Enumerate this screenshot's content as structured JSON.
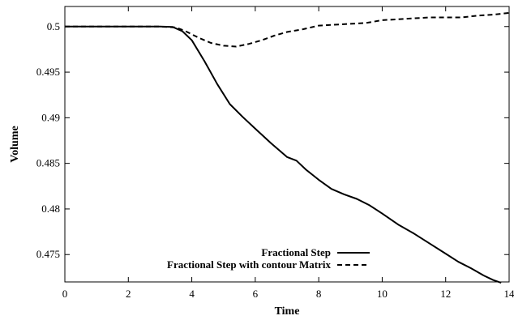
{
  "chart_data": {
    "type": "line",
    "title": "",
    "xlabel": "Time",
    "ylabel": "Volume",
    "xlim": [
      0,
      14
    ],
    "ylim": [
      0.472,
      0.5022
    ],
    "x_ticks": [
      0,
      2,
      4,
      6,
      8,
      10,
      12,
      14
    ],
    "x_tick_labels": [
      "0",
      "2",
      "4",
      "6",
      "8",
      "10",
      "12",
      "14"
    ],
    "y_ticks": [
      0.475,
      0.48,
      0.485,
      0.49,
      0.495,
      0.5
    ],
    "y_tick_labels": [
      "0.475",
      "0.48",
      "0.485",
      "0.49",
      "0.495",
      "0.5"
    ],
    "grid": false,
    "legend_position": "bottom-left",
    "series": [
      {
        "name": "Fractional Step",
        "line_style": "solid",
        "color": "#000000",
        "x": [
          0,
          1,
          2,
          3,
          3.4,
          3.7,
          4.0,
          4.4,
          4.8,
          5.2,
          5.6,
          6.0,
          6.5,
          7.0,
          7.3,
          7.6,
          8.0,
          8.4,
          8.8,
          9.2,
          9.6,
          10.0,
          10.5,
          11.0,
          11.5,
          12.0,
          12.4,
          12.8,
          13.2,
          13.5,
          13.75
        ],
        "y": [
          0.5,
          0.5,
          0.5,
          0.5,
          0.49995,
          0.4995,
          0.4985,
          0.4962,
          0.4937,
          0.4915,
          0.4901,
          0.4888,
          0.4872,
          0.4857,
          0.4853,
          0.4843,
          0.4832,
          0.4822,
          0.4816,
          0.4811,
          0.4804,
          0.4795,
          0.4783,
          0.4773,
          0.4762,
          0.4751,
          0.4742,
          0.4735,
          0.4727,
          0.4722,
          0.4719
        ]
      },
      {
        "name": "Fractional Step with contour Matrix",
        "line_style": "dashed",
        "color": "#000000",
        "x": [
          0,
          1,
          2,
          3,
          3.5,
          3.8,
          4.2,
          4.6,
          5.0,
          5.4,
          5.8,
          6.2,
          6.6,
          7.0,
          7.5,
          8.0,
          8.5,
          9.0,
          9.5,
          10.0,
          10.5,
          11.0,
          11.5,
          12.0,
          12.5,
          13.0,
          13.5,
          14.0
        ],
        "y": [
          0.5,
          0.5,
          0.5,
          0.5,
          0.4999,
          0.4995,
          0.4988,
          0.4982,
          0.4979,
          0.4978,
          0.4981,
          0.4985,
          0.499,
          0.4994,
          0.4997,
          0.5001,
          0.5002,
          0.5003,
          0.5004,
          0.5007,
          0.5008,
          0.5009,
          0.501,
          0.501,
          0.501,
          0.5012,
          0.5013,
          0.5015
        ]
      }
    ]
  }
}
